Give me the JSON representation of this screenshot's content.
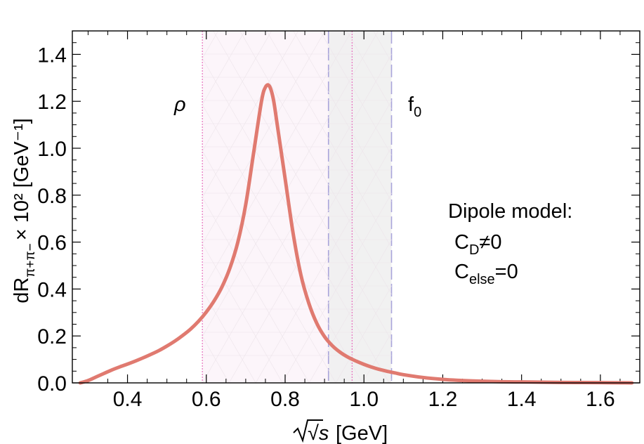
{
  "chart_data": {
    "type": "line",
    "title": "",
    "xlabel": "[GeV]",
    "xlabel_symbol": "√s",
    "ylabel": "dR",
    "ylabel_sub": "π+π−",
    "ylabel_tail": "× 10² [GeV⁻¹]",
    "xlim": [
      0.26,
      1.7
    ],
    "ylim": [
      0.0,
      1.5
    ],
    "x_ticks": [
      0.4,
      0.6,
      0.8,
      1.0,
      1.2,
      1.4,
      1.6
    ],
    "x_tick_labels": [
      "0.4",
      "0.6",
      "0.8",
      "1.0",
      "1.2",
      "1.4",
      "1.6"
    ],
    "y_ticks": [
      0.0,
      0.2,
      0.4,
      0.6,
      0.8,
      1.0,
      1.2,
      1.4
    ],
    "y_tick_labels": [
      "0.0",
      "0.2",
      "0.4",
      "0.6",
      "0.8",
      "1.0",
      "1.2",
      "1.4"
    ],
    "bands": [
      {
        "name": "rho-band",
        "x_range": [
          0.59,
          0.97
        ],
        "color": "#fbf3f9",
        "line_color": "#e879c2",
        "line_style": "dotted"
      },
      {
        "name": "f0-band",
        "x_range": [
          0.91,
          1.07
        ],
        "color": "#eeeeee",
        "line_color": "#a9a4da",
        "line_style": "dashed"
      }
    ],
    "annotations": {
      "rho": "ρ",
      "f0": "f",
      "f0_sub": "0",
      "model_title": "Dipole model:",
      "cd_prefix": "C",
      "cd_sub": "D",
      "cd_suffix": "≠0",
      "celse_prefix": "C",
      "celse_sub": "else",
      "celse_suffix": "=0"
    },
    "series": [
      {
        "name": "dipole-model",
        "color": "#e07a70",
        "x": [
          0.28,
          0.3,
          0.32,
          0.34,
          0.36,
          0.38,
          0.4,
          0.42,
          0.44,
          0.46,
          0.48,
          0.5,
          0.52,
          0.54,
          0.56,
          0.58,
          0.6,
          0.62,
          0.64,
          0.66,
          0.68,
          0.7,
          0.72,
          0.74,
          0.75,
          0.76,
          0.77,
          0.78,
          0.8,
          0.82,
          0.84,
          0.86,
          0.88,
          0.9,
          0.92,
          0.94,
          0.96,
          0.98,
          1.0,
          1.02,
          1.04,
          1.06,
          1.08,
          1.1,
          1.15,
          1.2,
          1.25,
          1.3,
          1.35,
          1.4,
          1.45,
          1.5,
          1.55,
          1.6,
          1.65,
          1.68
        ],
        "y": [
          0.0,
          0.01,
          0.025,
          0.04,
          0.055,
          0.068,
          0.08,
          0.093,
          0.107,
          0.122,
          0.138,
          0.157,
          0.178,
          0.202,
          0.229,
          0.262,
          0.302,
          0.35,
          0.41,
          0.49,
          0.6,
          0.76,
          0.98,
          1.2,
          1.26,
          1.265,
          1.21,
          1.1,
          0.87,
          0.64,
          0.46,
          0.34,
          0.255,
          0.197,
          0.158,
          0.13,
          0.109,
          0.093,
          0.079,
          0.067,
          0.057,
          0.049,
          0.042,
          0.035,
          0.023,
          0.015,
          0.01,
          0.007,
          0.005,
          0.004,
          0.003,
          0.002,
          0.0015,
          0.001,
          0.0005,
          0.0
        ]
      }
    ]
  }
}
